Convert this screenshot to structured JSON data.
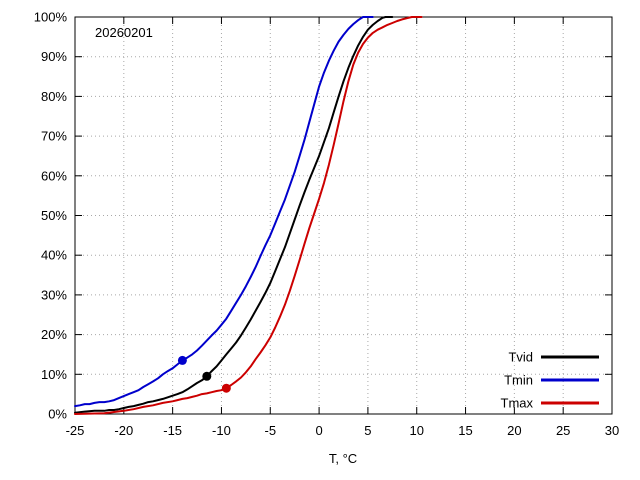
{
  "chart_data": {
    "type": "line",
    "subtype": "empirical-cdf",
    "title": "20260201",
    "xlabel": "T, °C",
    "ylabel": "",
    "xlim": [
      -25,
      30
    ],
    "ylim": [
      0,
      100
    ],
    "xticks": [
      -25,
      -20,
      -15,
      -10,
      -5,
      0,
      5,
      10,
      15,
      20,
      25,
      30
    ],
    "xtick_labels": [
      "-25",
      "-20",
      "-15",
      "-10",
      "-5",
      "0",
      "5",
      "10",
      "15",
      "20",
      "25",
      "30"
    ],
    "yticks": [
      0,
      10,
      20,
      30,
      40,
      50,
      60,
      70,
      80,
      90,
      100
    ],
    "ytick_labels": [
      "0%",
      "10%",
      "20%",
      "30%",
      "40%",
      "50%",
      "60%",
      "70%",
      "80%",
      "90%",
      "100%"
    ],
    "grid": true,
    "legend_position": "bottom-right",
    "legend_order": [
      "Tvid",
      "Tmin",
      "Tmax"
    ],
    "series": [
      {
        "name": "Tvid",
        "color": "#000000",
        "marker": {
          "x": -11.5,
          "y": 9.5
        },
        "points": [
          [
            -25,
            0.3
          ],
          [
            -24,
            0.6
          ],
          [
            -23,
            0.8
          ],
          [
            -22,
            0.8
          ],
          [
            -21.5,
            1
          ],
          [
            -21,
            1
          ],
          [
            -20.5,
            1.2
          ],
          [
            -20,
            1.5
          ],
          [
            -19.5,
            1.8
          ],
          [
            -19,
            2
          ],
          [
            -18.5,
            2.3
          ],
          [
            -18,
            2.6
          ],
          [
            -17.5,
            3
          ],
          [
            -17,
            3.2
          ],
          [
            -16.5,
            3.5
          ],
          [
            -16,
            3.8
          ],
          [
            -15.5,
            4.2
          ],
          [
            -15,
            4.6
          ],
          [
            -14.5,
            5
          ],
          [
            -14,
            5.5
          ],
          [
            -13.5,
            6.2
          ],
          [
            -13,
            7
          ],
          [
            -12.5,
            7.8
          ],
          [
            -12,
            8.5
          ],
          [
            -11.5,
            9.5
          ],
          [
            -11,
            10.8
          ],
          [
            -10.5,
            12
          ],
          [
            -10,
            13.5
          ],
          [
            -9.5,
            15
          ],
          [
            -9,
            16.5
          ],
          [
            -8.5,
            18
          ],
          [
            -8,
            19.8
          ],
          [
            -7.5,
            21.8
          ],
          [
            -7,
            23.8
          ],
          [
            -6.5,
            26
          ],
          [
            -6,
            28.2
          ],
          [
            -5.5,
            30.5
          ],
          [
            -5,
            33
          ],
          [
            -4.5,
            36
          ],
          [
            -4,
            39
          ],
          [
            -3.5,
            42
          ],
          [
            -3,
            45.5
          ],
          [
            -2.5,
            49
          ],
          [
            -2,
            52.5
          ],
          [
            -1.5,
            55.8
          ],
          [
            -1,
            59
          ],
          [
            -0.5,
            62
          ],
          [
            0,
            65
          ],
          [
            0.5,
            68.5
          ],
          [
            1,
            72
          ],
          [
            1.5,
            76
          ],
          [
            2,
            80
          ],
          [
            2.5,
            83.8
          ],
          [
            3,
            87.2
          ],
          [
            3.5,
            90.2
          ],
          [
            4,
            92.8
          ],
          [
            4.5,
            95
          ],
          [
            5,
            96.8
          ],
          [
            5.5,
            98
          ],
          [
            6,
            99
          ],
          [
            6.5,
            99.8
          ],
          [
            6.8,
            100
          ],
          [
            7.5,
            100
          ]
        ]
      },
      {
        "name": "Tmin",
        "color": "#0000cc",
        "marker": {
          "x": -14,
          "y": 13.5
        },
        "points": [
          [
            -25,
            2
          ],
          [
            -24.5,
            2.2
          ],
          [
            -24,
            2.5
          ],
          [
            -23.5,
            2.5
          ],
          [
            -23,
            2.8
          ],
          [
            -22.5,
            3
          ],
          [
            -22,
            3
          ],
          [
            -21.5,
            3.2
          ],
          [
            -21,
            3.5
          ],
          [
            -20.5,
            4
          ],
          [
            -20,
            4.5
          ],
          [
            -19.5,
            5
          ],
          [
            -19,
            5.5
          ],
          [
            -18.5,
            6
          ],
          [
            -18,
            6.8
          ],
          [
            -17.5,
            7.5
          ],
          [
            -17,
            8.2
          ],
          [
            -16.5,
            9
          ],
          [
            -16,
            10
          ],
          [
            -15.5,
            10.8
          ],
          [
            -15,
            11.5
          ],
          [
            -14.5,
            12.5
          ],
          [
            -14,
            13.5
          ],
          [
            -13.5,
            14.2
          ],
          [
            -13,
            15
          ],
          [
            -12.5,
            16
          ],
          [
            -12,
            17.2
          ],
          [
            -11.5,
            18.5
          ],
          [
            -11,
            19.8
          ],
          [
            -10.5,
            21
          ],
          [
            -10,
            22.5
          ],
          [
            -9.5,
            24
          ],
          [
            -9,
            26
          ],
          [
            -8.5,
            28
          ],
          [
            -8,
            30
          ],
          [
            -7.5,
            32.2
          ],
          [
            -7,
            34.5
          ],
          [
            -6.5,
            37
          ],
          [
            -6,
            39.8
          ],
          [
            -5.5,
            42.5
          ],
          [
            -5,
            45
          ],
          [
            -4.5,
            48
          ],
          [
            -4,
            51
          ],
          [
            -3.5,
            54
          ],
          [
            -3,
            57.5
          ],
          [
            -2.5,
            61
          ],
          [
            -2,
            65
          ],
          [
            -1.5,
            69
          ],
          [
            -1,
            73.5
          ],
          [
            -0.5,
            78
          ],
          [
            0,
            82.5
          ],
          [
            0.5,
            86
          ],
          [
            1,
            89
          ],
          [
            1.5,
            91.5
          ],
          [
            2,
            93.8
          ],
          [
            2.5,
            95.5
          ],
          [
            3,
            97
          ],
          [
            3.5,
            98.2
          ],
          [
            4,
            99.2
          ],
          [
            4.5,
            100
          ],
          [
            5.5,
            100
          ]
        ]
      },
      {
        "name": "Tmax",
        "color": "#cc0000",
        "marker": {
          "x": -9.5,
          "y": 6.5
        },
        "points": [
          [
            -25,
            0
          ],
          [
            -22,
            0.2
          ],
          [
            -21,
            0.5
          ],
          [
            -20,
            0.8
          ],
          [
            -19,
            1.2
          ],
          [
            -18,
            1.8
          ],
          [
            -17,
            2.2
          ],
          [
            -16,
            2.8
          ],
          [
            -15,
            3.2
          ],
          [
            -14.5,
            3.5
          ],
          [
            -14,
            3.8
          ],
          [
            -13.5,
            4
          ],
          [
            -13,
            4.3
          ],
          [
            -12.5,
            4.6
          ],
          [
            -12,
            5
          ],
          [
            -11.5,
            5.2
          ],
          [
            -11,
            5.5
          ],
          [
            -10.5,
            5.8
          ],
          [
            -10,
            6
          ],
          [
            -9.5,
            6.5
          ],
          [
            -9,
            7.3
          ],
          [
            -8.5,
            8.2
          ],
          [
            -8,
            9.2
          ],
          [
            -7.5,
            10.5
          ],
          [
            -7,
            12
          ],
          [
            -6.5,
            13.8
          ],
          [
            -6,
            15.5
          ],
          [
            -5.5,
            17.3
          ],
          [
            -5,
            19.3
          ],
          [
            -4.5,
            21.8
          ],
          [
            -4,
            24.5
          ],
          [
            -3.5,
            27.5
          ],
          [
            -3,
            31
          ],
          [
            -2.5,
            34.8
          ],
          [
            -2,
            38.8
          ],
          [
            -1.5,
            42.8
          ],
          [
            -1,
            46.8
          ],
          [
            -0.5,
            50.5
          ],
          [
            0,
            54.2
          ],
          [
            0.5,
            58.2
          ],
          [
            1,
            62.8
          ],
          [
            1.5,
            67.8
          ],
          [
            2,
            73.2
          ],
          [
            2.5,
            78.8
          ],
          [
            3,
            83.8
          ],
          [
            3.5,
            88
          ],
          [
            4,
            91
          ],
          [
            4.5,
            93.2
          ],
          [
            5,
            94.8
          ],
          [
            5.5,
            96
          ],
          [
            6,
            96.8
          ],
          [
            6.5,
            97.4
          ],
          [
            7,
            98
          ],
          [
            7.5,
            98.5
          ],
          [
            8,
            99
          ],
          [
            8.5,
            99.4
          ],
          [
            9,
            99.7
          ],
          [
            9.5,
            100
          ],
          [
            10.5,
            100
          ]
        ]
      }
    ]
  },
  "colors": {
    "background": "#ffffff",
    "frame": "#000000",
    "grid": "#a8a8a8",
    "tvid": "#000000",
    "tmin": "#0000cc",
    "tmax": "#cc0000"
  }
}
